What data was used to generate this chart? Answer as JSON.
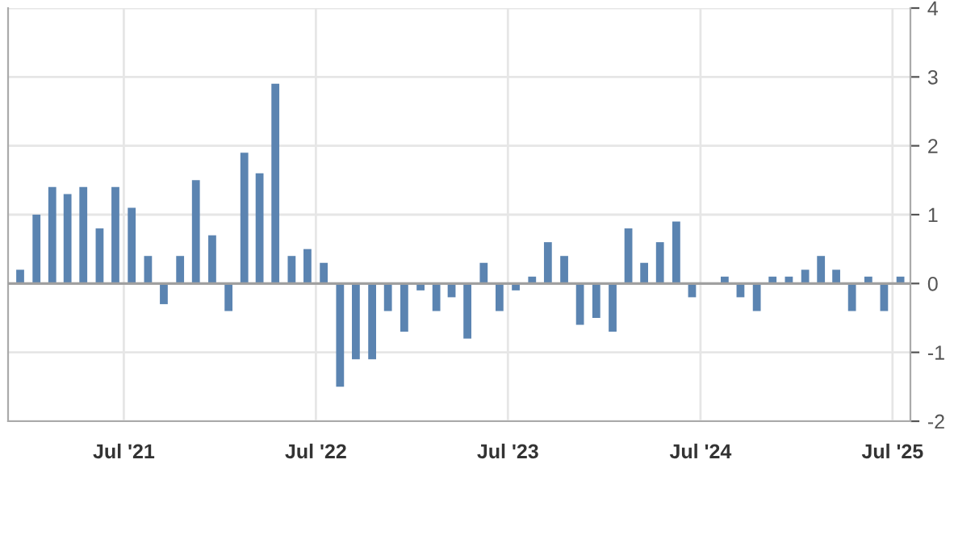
{
  "chart_data": {
    "type": "bar",
    "x": [
      "2020-12-16",
      "2021-01-16",
      "2021-02-15",
      "2021-03-16",
      "2021-04-15",
      "2021-05-16",
      "2021-06-15",
      "2021-07-16",
      "2021-08-16",
      "2021-09-15",
      "2021-10-16",
      "2021-11-15",
      "2021-12-16",
      "2022-01-16",
      "2022-02-15",
      "2022-03-16",
      "2022-04-15",
      "2022-05-16",
      "2022-06-15",
      "2022-07-16",
      "2022-08-16",
      "2022-09-15",
      "2022-10-16",
      "2022-11-15",
      "2022-12-16",
      "2023-01-16",
      "2023-02-15",
      "2023-03-16",
      "2023-04-15",
      "2023-05-16",
      "2023-06-15",
      "2023-07-16",
      "2023-08-16",
      "2023-09-15",
      "2023-10-16",
      "2023-11-15",
      "2023-12-16",
      "2024-01-16",
      "2024-02-15",
      "2024-03-16",
      "2024-04-15",
      "2024-05-16",
      "2024-06-15",
      "2024-07-16",
      "2024-08-16",
      "2024-09-15",
      "2024-10-16",
      "2024-11-15",
      "2024-12-16",
      "2025-01-16",
      "2025-02-15",
      "2025-03-16",
      "2025-04-15",
      "2025-05-16",
      "2025-06-15",
      "2025-07-16"
    ],
    "values": [
      0.2,
      1.0,
      1.4,
      1.3,
      1.4,
      0.8,
      1.4,
      1.1,
      0.4,
      -0.3,
      0.4,
      1.5,
      0.7,
      -0.4,
      1.9,
      1.6,
      2.9,
      0.4,
      0.5,
      0.3,
      -1.5,
      -1.1,
      -1.1,
      -0.4,
      -0.7,
      -0.1,
      -0.4,
      -0.2,
      -0.8,
      0.3,
      -0.4,
      -0.1,
      0.1,
      0.6,
      0.4,
      -0.6,
      -0.5,
      -0.7,
      0.8,
      0.3,
      0.6,
      0.9,
      -0.2,
      0,
      0.1,
      -0.2,
      -0.4,
      0.1,
      0.1,
      0.2,
      0.4,
      0.2,
      -0.4,
      0.1,
      -0.4,
      0.1
    ],
    "color": "#5b84b1",
    "xlim": [
      "2020-11-23",
      "2025-08-04"
    ],
    "xticks": [
      {
        "value": "2021-07-01",
        "label": "Jul '21"
      },
      {
        "value": "2022-07-01",
        "label": "Jul '22"
      },
      {
        "value": "2023-07-01",
        "label": "Jul '23"
      },
      {
        "value": "2024-07-01",
        "label": "Jul '24"
      },
      {
        "value": "2025-07-01",
        "label": "Jul '25"
      }
    ],
    "ylim": [
      -2,
      4
    ],
    "yticks": [
      -2,
      -1,
      0,
      1,
      2,
      3,
      4
    ],
    "ref_lines": [
      {
        "axis": "y",
        "value": 0,
        "label": null,
        "color": "#a0a0a0"
      }
    ],
    "grid": true,
    "legend": false
  }
}
